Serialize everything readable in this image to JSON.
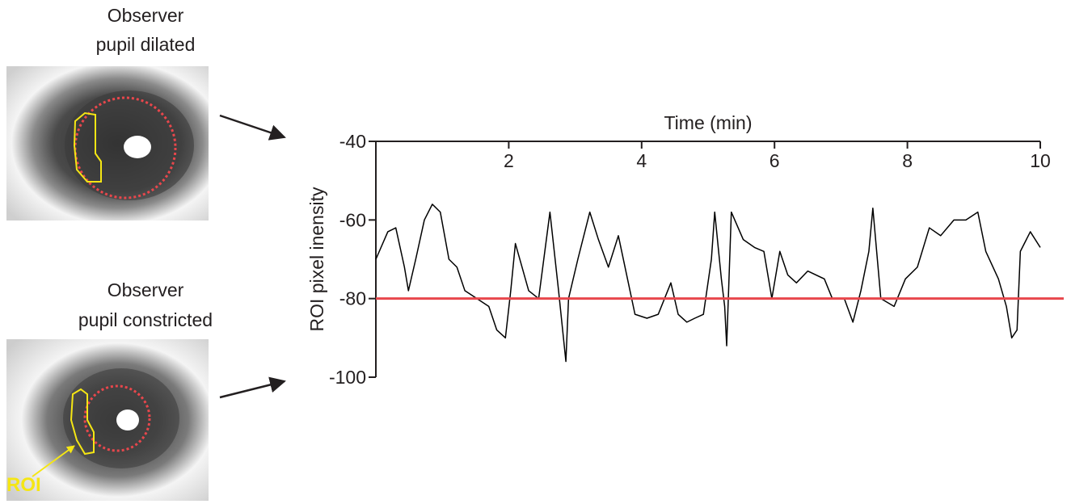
{
  "panels": [
    {
      "label_lines": [
        "Observer",
        "pupil dilated"
      ]
    },
    {
      "label_lines": [
        "Observer",
        "pupil constricted"
      ]
    }
  ],
  "roi_label": "ROI",
  "chart_data": {
    "type": "line",
    "x_label": "Time (min)",
    "y_label": "ROI pixel inensity",
    "x": [
      0,
      0.18,
      0.3,
      0.43,
      0.49,
      0.6,
      0.73,
      0.85,
      0.97,
      1.1,
      1.22,
      1.34,
      1.52,
      1.7,
      1.82,
      1.95,
      2.03,
      2.1,
      2.2,
      2.3,
      2.45,
      2.62,
      2.75,
      2.86,
      2.9,
      3.04,
      3.22,
      3.35,
      3.5,
      3.65,
      3.9,
      4.08,
      4.25,
      4.44,
      4.55,
      4.68,
      4.8,
      4.93,
      5.05,
      5.1,
      5.2,
      5.25,
      5.28,
      5.35,
      5.53,
      5.7,
      5.84,
      5.96,
      6.08,
      6.2,
      6.33,
      6.5,
      6.75,
      6.87,
      7.05,
      7.18,
      7.3,
      7.42,
      7.48,
      7.6,
      7.8,
      7.97,
      8.15,
      8.33,
      8.5,
      8.7,
      8.88,
      9.06,
      9.18,
      9.37,
      9.49,
      9.57,
      9.65,
      9.7,
      9.85,
      10
    ],
    "values": [
      -70,
      -63,
      -62,
      -72,
      -78,
      -70,
      -60,
      -56,
      -58,
      -70,
      -72,
      -78,
      -80,
      -82,
      -88,
      -90,
      -78,
      -66,
      -72,
      -78,
      -80,
      -58,
      -78,
      -96,
      -80,
      -70,
      -58,
      -65,
      -72,
      -64,
      -84,
      -85,
      -84,
      -76,
      -84,
      -86,
      -85,
      -84,
      -70,
      -58,
      -75,
      -82,
      -92,
      -58,
      -65,
      -67,
      -68,
      -80,
      -68,
      -74,
      -76,
      -73,
      -75,
      -80,
      -80,
      -86,
      -78,
      -68,
      -57,
      -80,
      -82,
      -75,
      -72,
      -62,
      -64,
      -60,
      -60,
      -58,
      -68,
      -75,
      -82,
      -90,
      -88,
      -68,
      -63,
      -67
    ],
    "color": "#000000",
    "xlim": [
      0,
      10
    ],
    "xticks": [
      2,
      4,
      6,
      8,
      10
    ],
    "ylim": [
      -100,
      -40
    ],
    "yticks": [
      -40,
      -60,
      -80,
      -100
    ],
    "threshold": {
      "value": -80,
      "color": "#e8474c"
    }
  }
}
